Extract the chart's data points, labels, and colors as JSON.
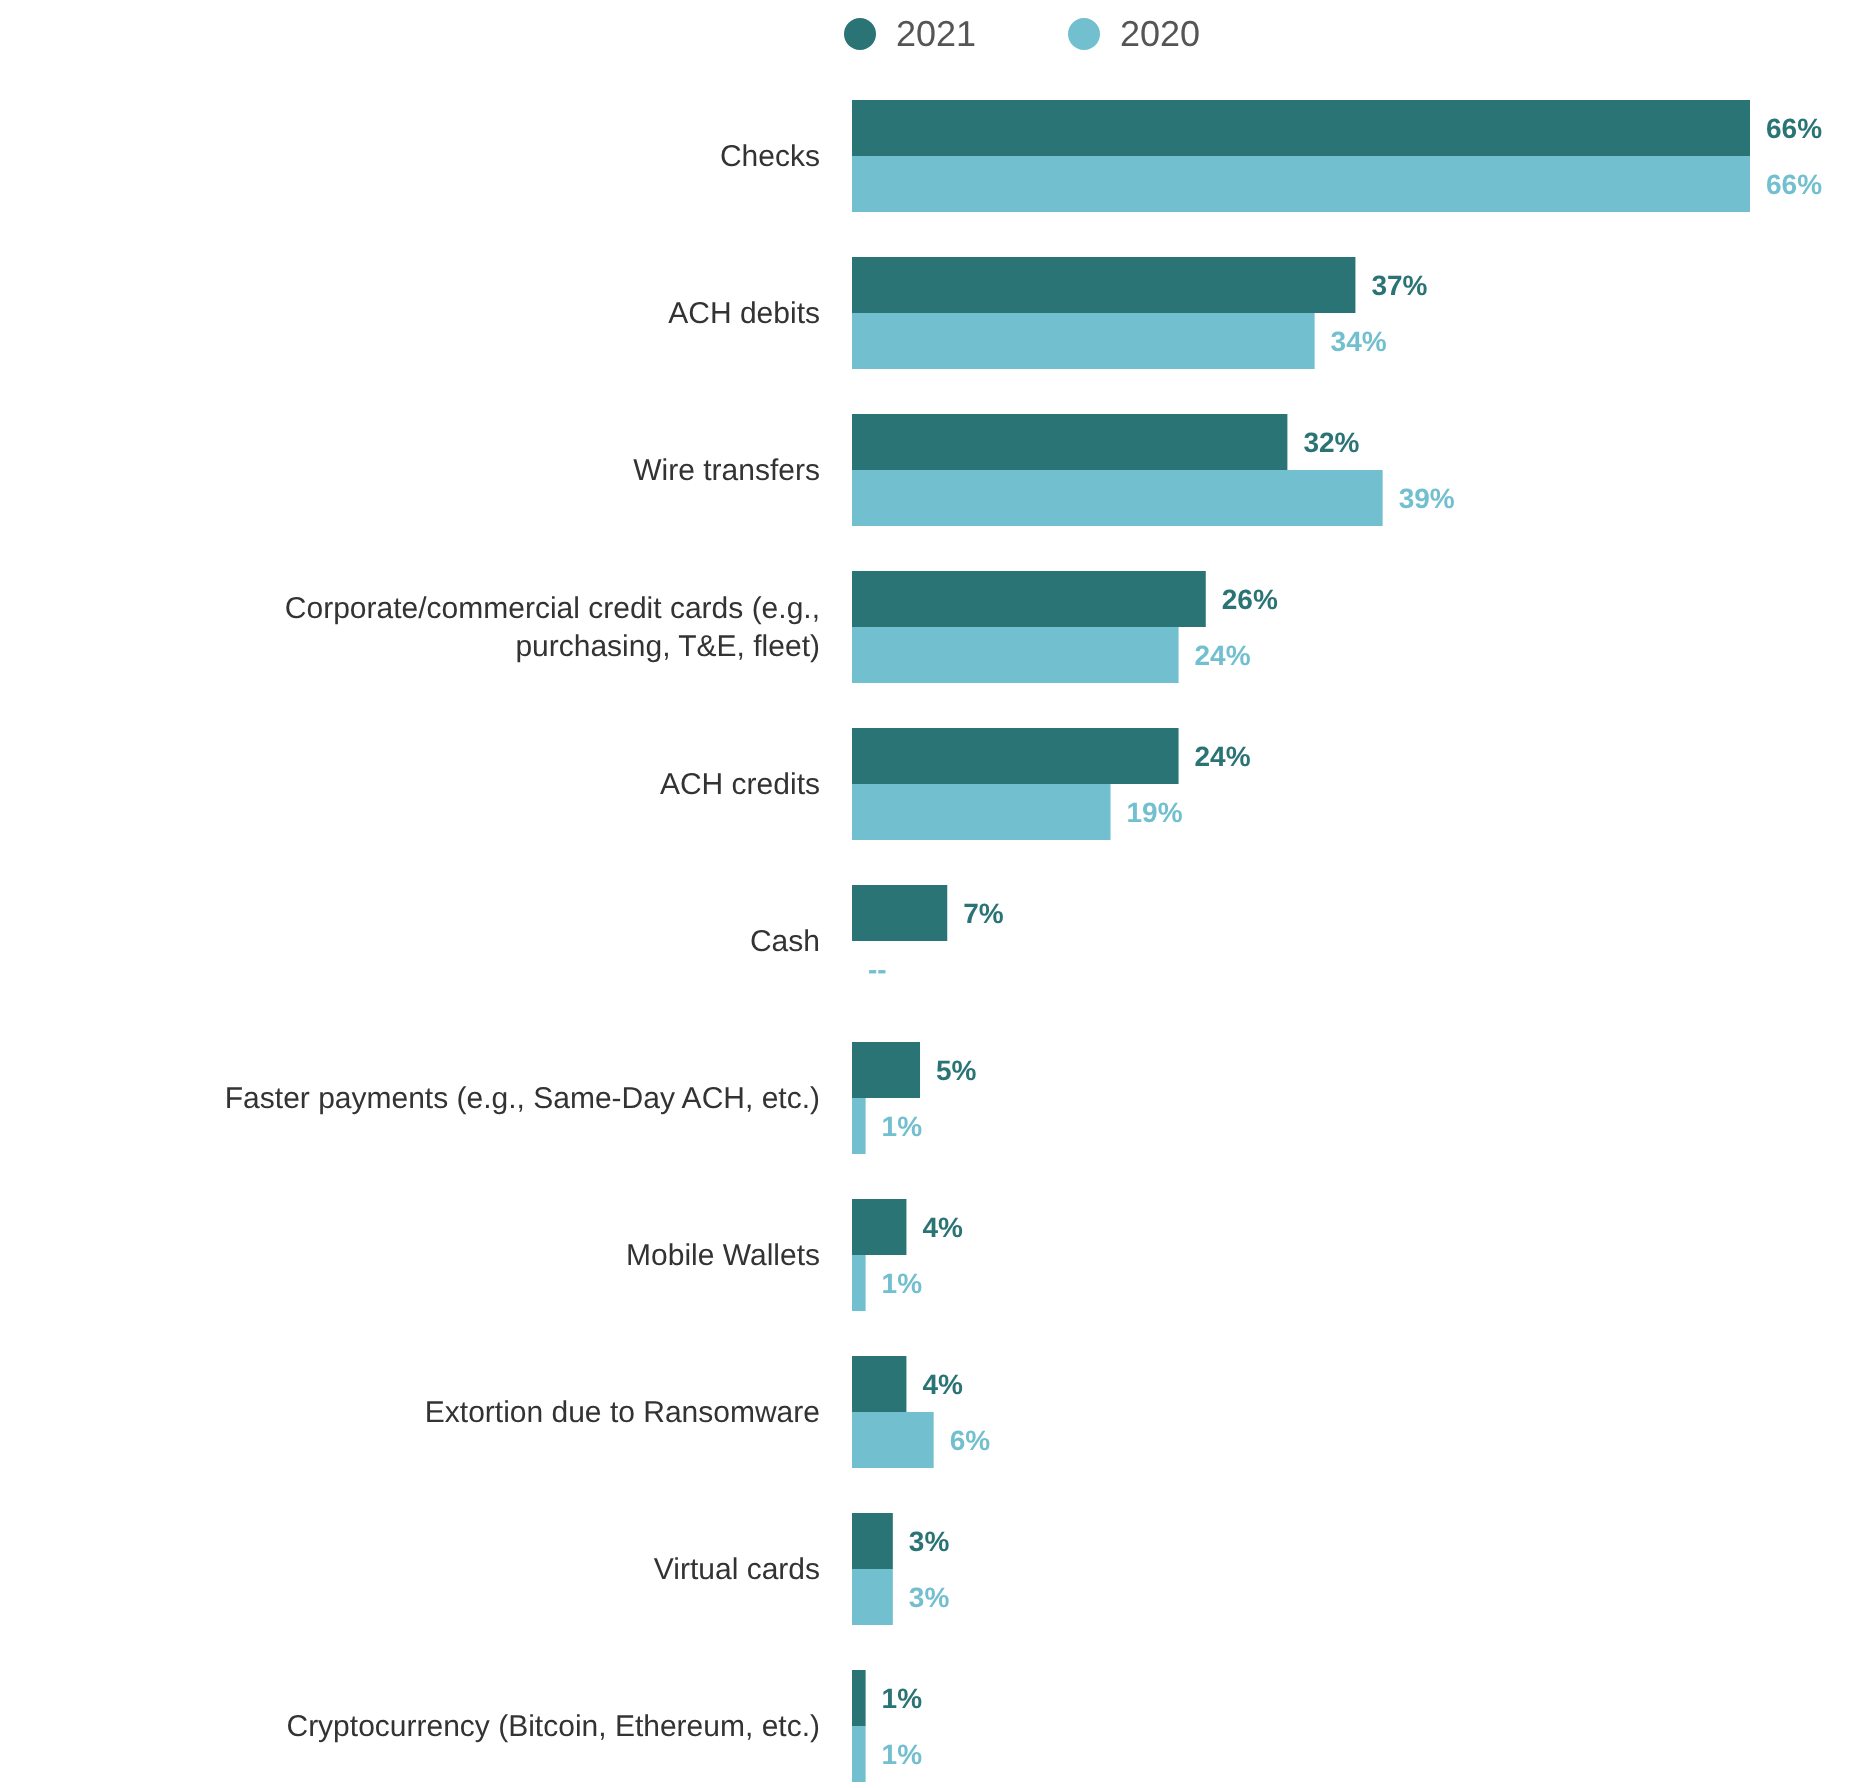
{
  "chart_data": {
    "type": "bar",
    "orientation": "horizontal",
    "legend": "top",
    "categories": [
      "Checks",
      "ACH debits",
      "Wire transfers",
      "Corporate/commercial credit cards (e.g., purchasing, T&E, fleet)",
      "ACH credits",
      "Cash",
      "Faster payments (e.g., Same-Day ACH, etc.)",
      "Mobile Wallets",
      "Extortion due to Ransomware",
      "Virtual cards",
      "Cryptocurrency (Bitcoin, Ethereum, etc.)"
    ],
    "series": [
      {
        "name": "2021",
        "color": "#2a7475",
        "values": [
          66,
          37,
          32,
          26,
          24,
          7,
          5,
          4,
          4,
          3,
          1
        ],
        "value_labels": [
          "66%",
          "37%",
          "32%",
          "26%",
          "24%",
          "7%",
          "5%",
          "4%",
          "4%",
          "3%",
          "1%"
        ]
      },
      {
        "name": "2020",
        "color": "#72bfcf",
        "values": [
          66,
          34,
          39,
          24,
          19,
          null,
          1,
          1,
          6,
          3,
          1
        ],
        "value_labels": [
          "66%",
          "34%",
          "39%",
          "24%",
          "19%",
          "--",
          "1%",
          "1%",
          "6%",
          "3%",
          "1%"
        ]
      }
    ]
  }
}
